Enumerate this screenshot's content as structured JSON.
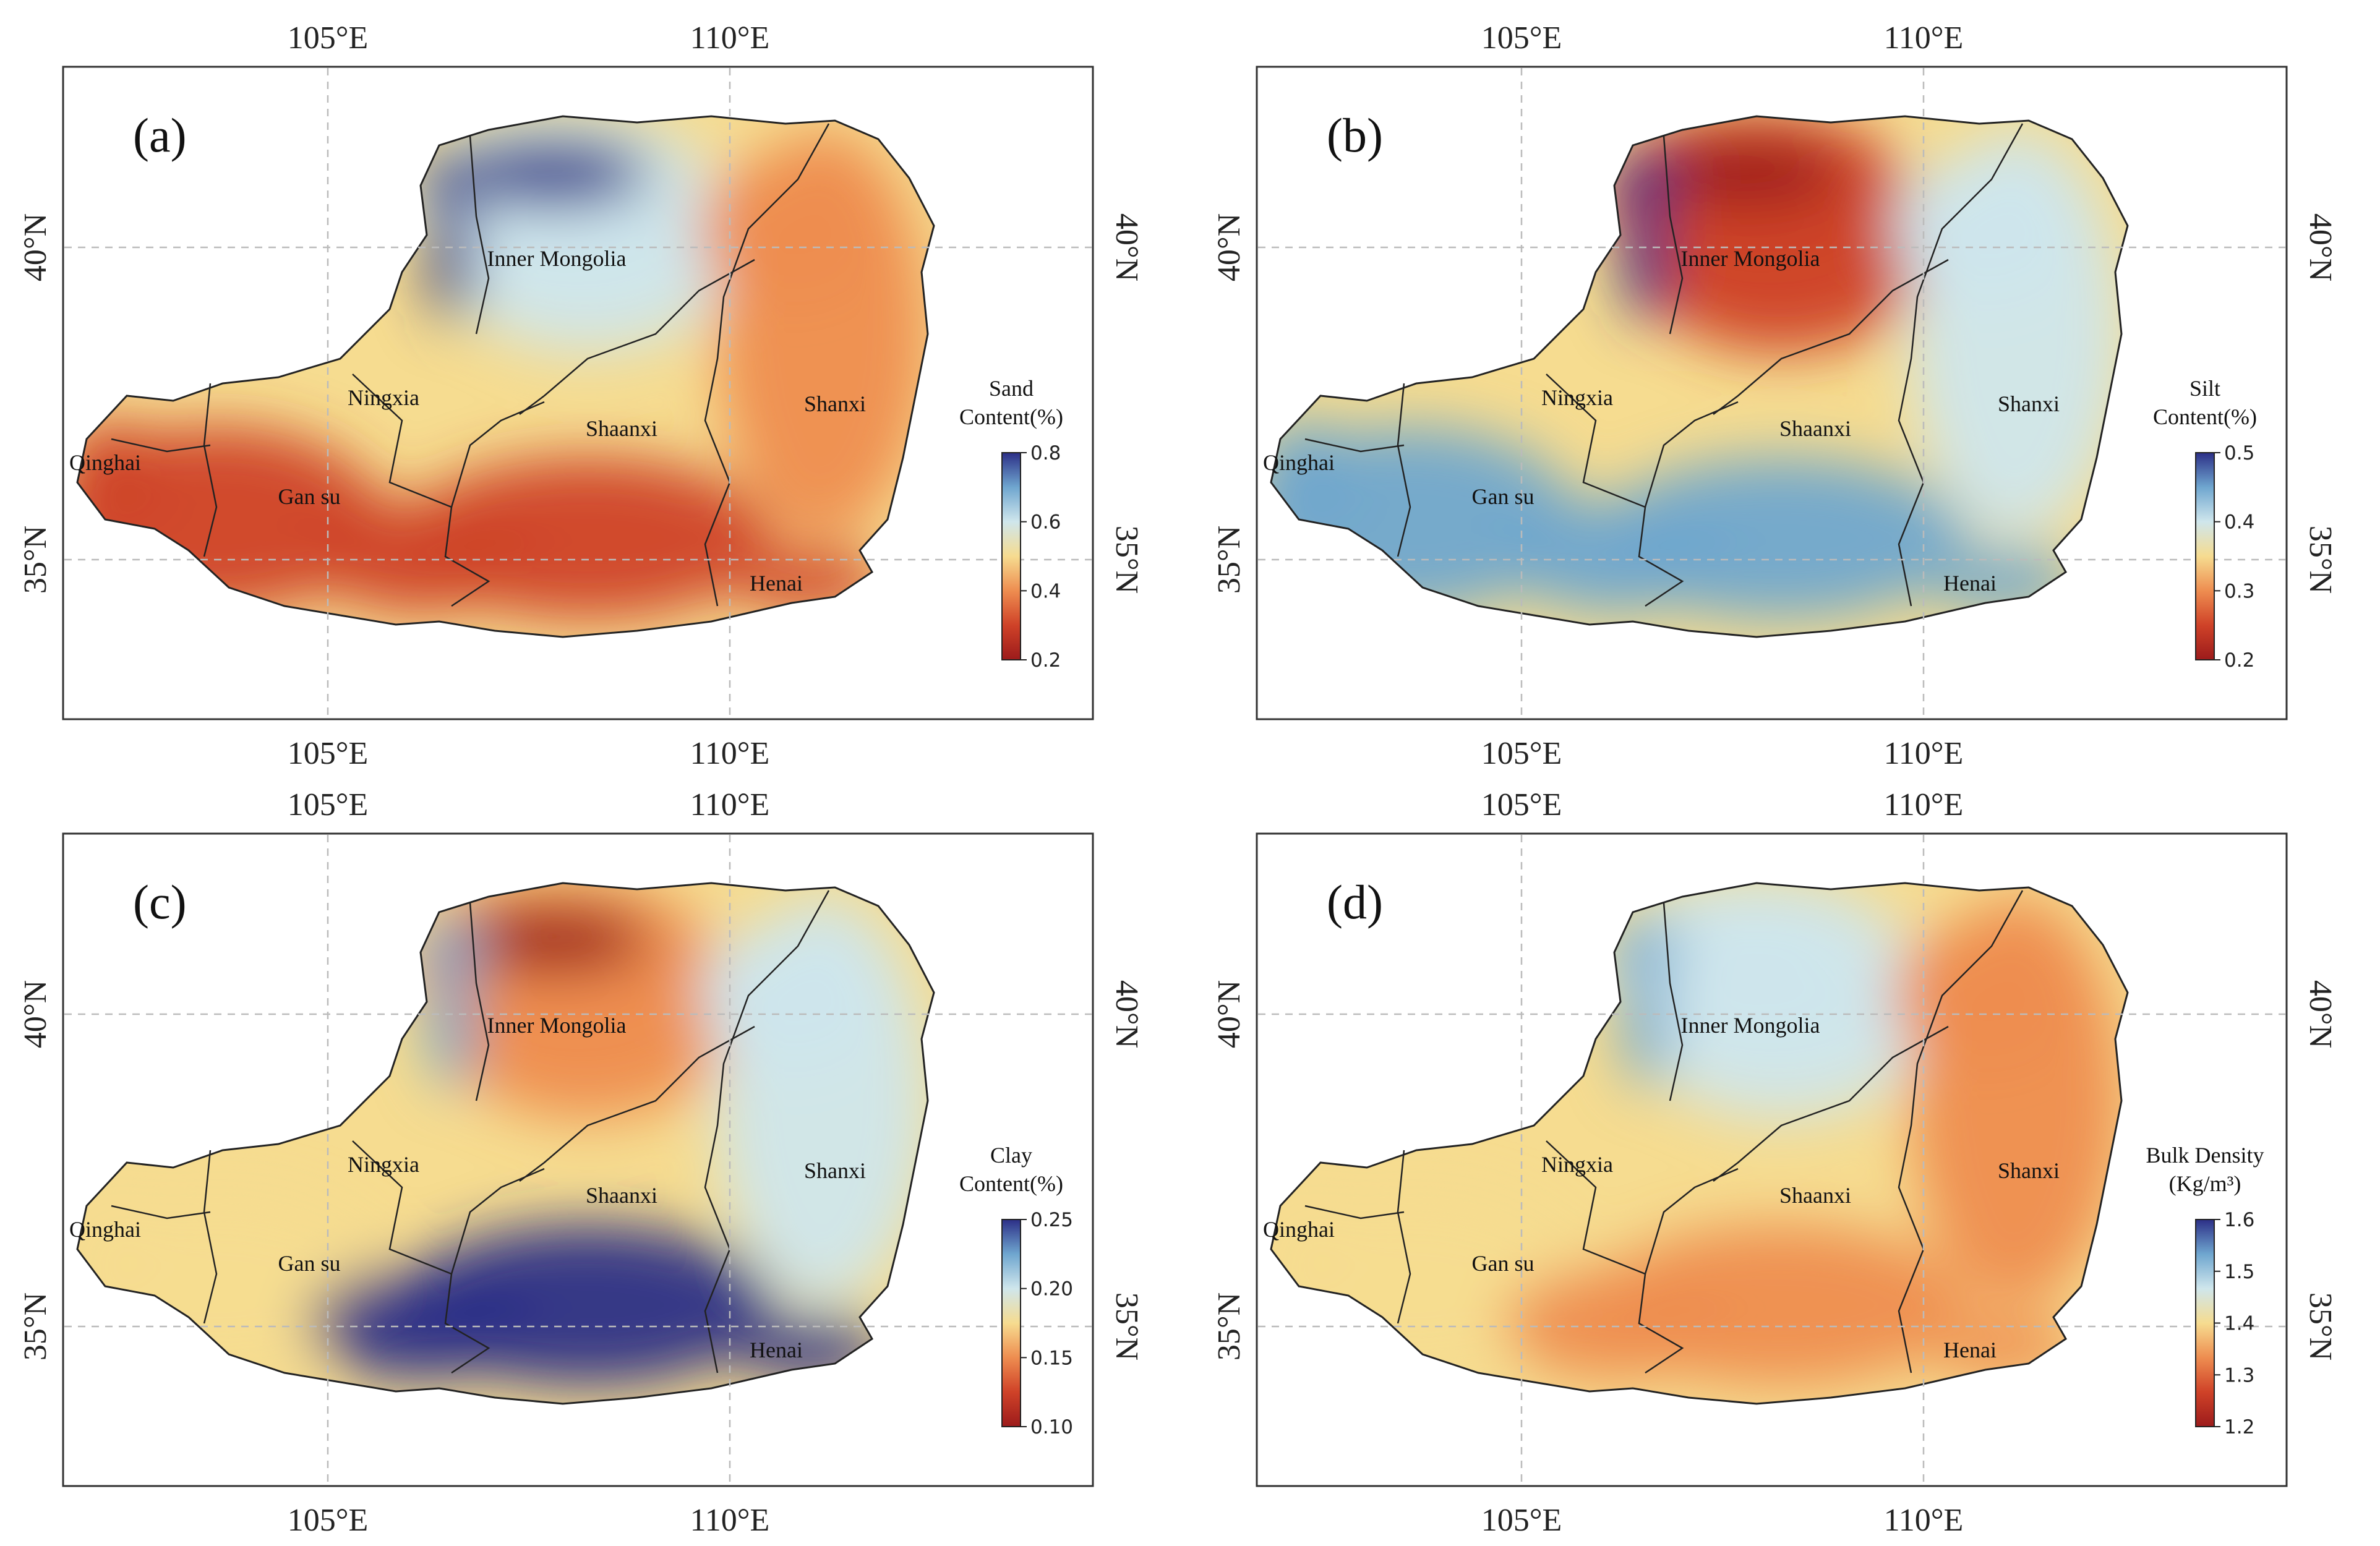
{
  "axes": {
    "lon_ticks": [
      "105°E",
      "110°E"
    ],
    "lat_ticks": [
      "40°N",
      "35°N"
    ]
  },
  "panels": [
    {
      "letter": "(a)",
      "colorbar_title": [
        "Sand",
        "Content(%)"
      ],
      "colorbar_ticks": [
        "0.8",
        "0.6",
        "0.4",
        "0.2"
      ],
      "palette": [
        "#2c2f87",
        "#6fa6cf",
        "#cfe6ec",
        "#f6dc90",
        "#ee8d50",
        "#cf4228",
        "#9c1b1b"
      ],
      "dominant": {
        "west": 0.82,
        "north": 0.28,
        "sandbelt": 0.02,
        "desert": 0.05,
        "east": 0.72,
        "south": 0.86
      },
      "regions": [
        "Inner Mongolia",
        "Ningxia",
        "Shaanxi",
        "Shanxi",
        "Qinghai",
        "Gan su",
        "Henai"
      ]
    },
    {
      "letter": "(b)",
      "colorbar_title": [
        "Silt",
        "Content(%)"
      ],
      "colorbar_ticks": [
        "0.5",
        "0.4",
        "0.3",
        "0.2"
      ],
      "palette": [
        "#2c2f87",
        "#6fa6cf",
        "#cfe6ec",
        "#f6dc90",
        "#ee8d50",
        "#cf4228",
        "#9c1b1b"
      ],
      "dominant": {
        "west": 0.18,
        "north": 0.78,
        "sandbelt": 0.92,
        "desert": 0.05,
        "east": 0.28,
        "south": 0.12
      },
      "regions": [
        "Inner Mongolia",
        "Ningxia",
        "Shaanxi",
        "Shanxi",
        "Qinghai",
        "Gan su",
        "Henai"
      ]
    },
    {
      "letter": "(c)",
      "colorbar_title": [
        "Clay",
        "Content(%)"
      ],
      "colorbar_ticks": [
        "0.25",
        "0.20",
        "0.15",
        "0.10"
      ],
      "palette": [
        "#2c2f87",
        "#6fa6cf",
        "#cfe6ec",
        "#f6dc90",
        "#ee8d50",
        "#cf4228",
        "#9c1b1b"
      ],
      "dominant": {
        "west": 0.42,
        "north": 0.72,
        "sandbelt": 0.96,
        "desert": 0.1,
        "east": 0.35,
        "south": 0.08
      },
      "regions": [
        "Inner Mongolia",
        "Ningxia",
        "Shaanxi",
        "Shanxi",
        "Qinghai",
        "Gan su",
        "Henai"
      ]
    },
    {
      "letter": "(d)",
      "colorbar_title": [
        "Bulk Density",
        "(Kg/m³)"
      ],
      "colorbar_ticks": [
        "1.6",
        "1.5",
        "1.4",
        "1.3",
        "1.2"
      ],
      "palette": [
        "#2c2f87",
        "#6fa6cf",
        "#cfe6ec",
        "#f6dc90",
        "#ee8d50",
        "#cf4228",
        "#9c1b1b"
      ],
      "dominant": {
        "west": 0.48,
        "north": 0.28,
        "sandbelt": 0.3,
        "desert": 0.25,
        "east": 0.72,
        "south": 0.6
      },
      "regions": [
        "Inner Mongolia",
        "Ningxia",
        "Shaanxi",
        "Shanxi",
        "Qinghai",
        "Gan su",
        "Henai"
      ]
    }
  ]
}
